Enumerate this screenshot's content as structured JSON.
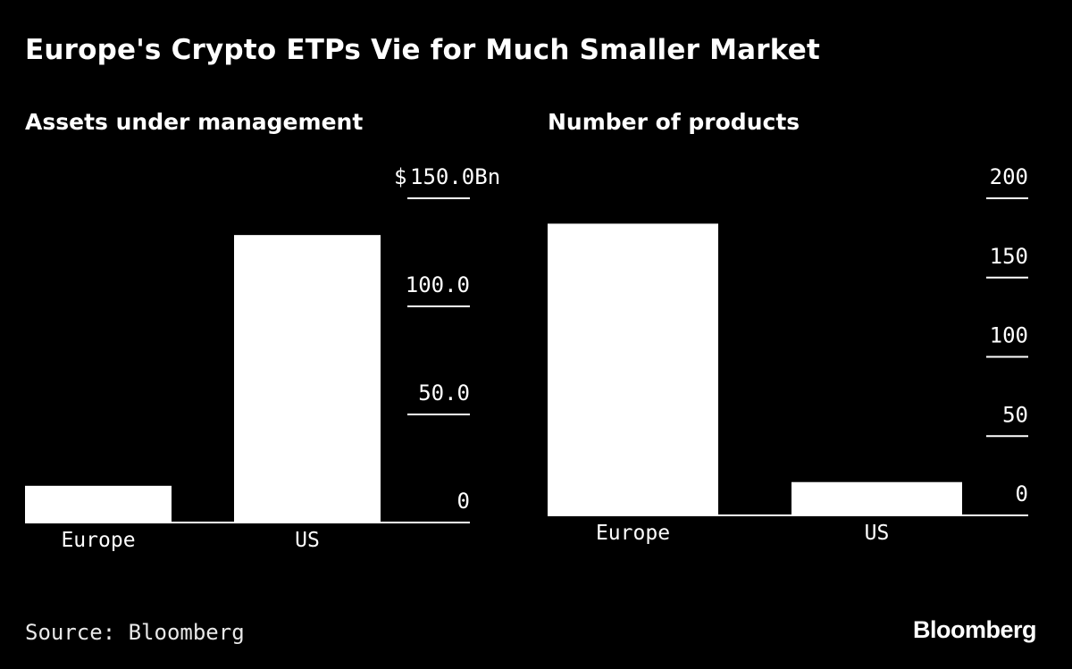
{
  "title": "Europe's Crypto ETPs Vie for Much Smaller Market",
  "source": "Source: Bloomberg",
  "brand": "Bloomberg",
  "colors": {
    "background": "#000000",
    "bars": "#ffffff",
    "text": "#ffffff"
  },
  "chart_data": [
    {
      "type": "bar",
      "title": "Assets under management",
      "categories": [
        "Europe",
        "US"
      ],
      "values": [
        17,
        133
      ],
      "ylim": [
        0,
        150
      ],
      "ticks": [
        0,
        50,
        100,
        150
      ],
      "tick_labels": [
        "0",
        "50.0",
        "100.0",
        "150.0Bn"
      ],
      "top_tick_prefix": "$",
      "axis_position": "right",
      "unit": "$ Bn",
      "xlabel": "",
      "ylabel": ""
    },
    {
      "type": "bar",
      "title": "Number of products",
      "categories": [
        "Europe",
        "US"
      ],
      "values": [
        184,
        21
      ],
      "ylim": [
        0,
        200
      ],
      "ticks": [
        0,
        50,
        100,
        150,
        200
      ],
      "tick_labels": [
        "0",
        "50",
        "100",
        "150",
        "200"
      ],
      "axis_position": "right",
      "unit": "count",
      "xlabel": "",
      "ylabel": ""
    }
  ]
}
